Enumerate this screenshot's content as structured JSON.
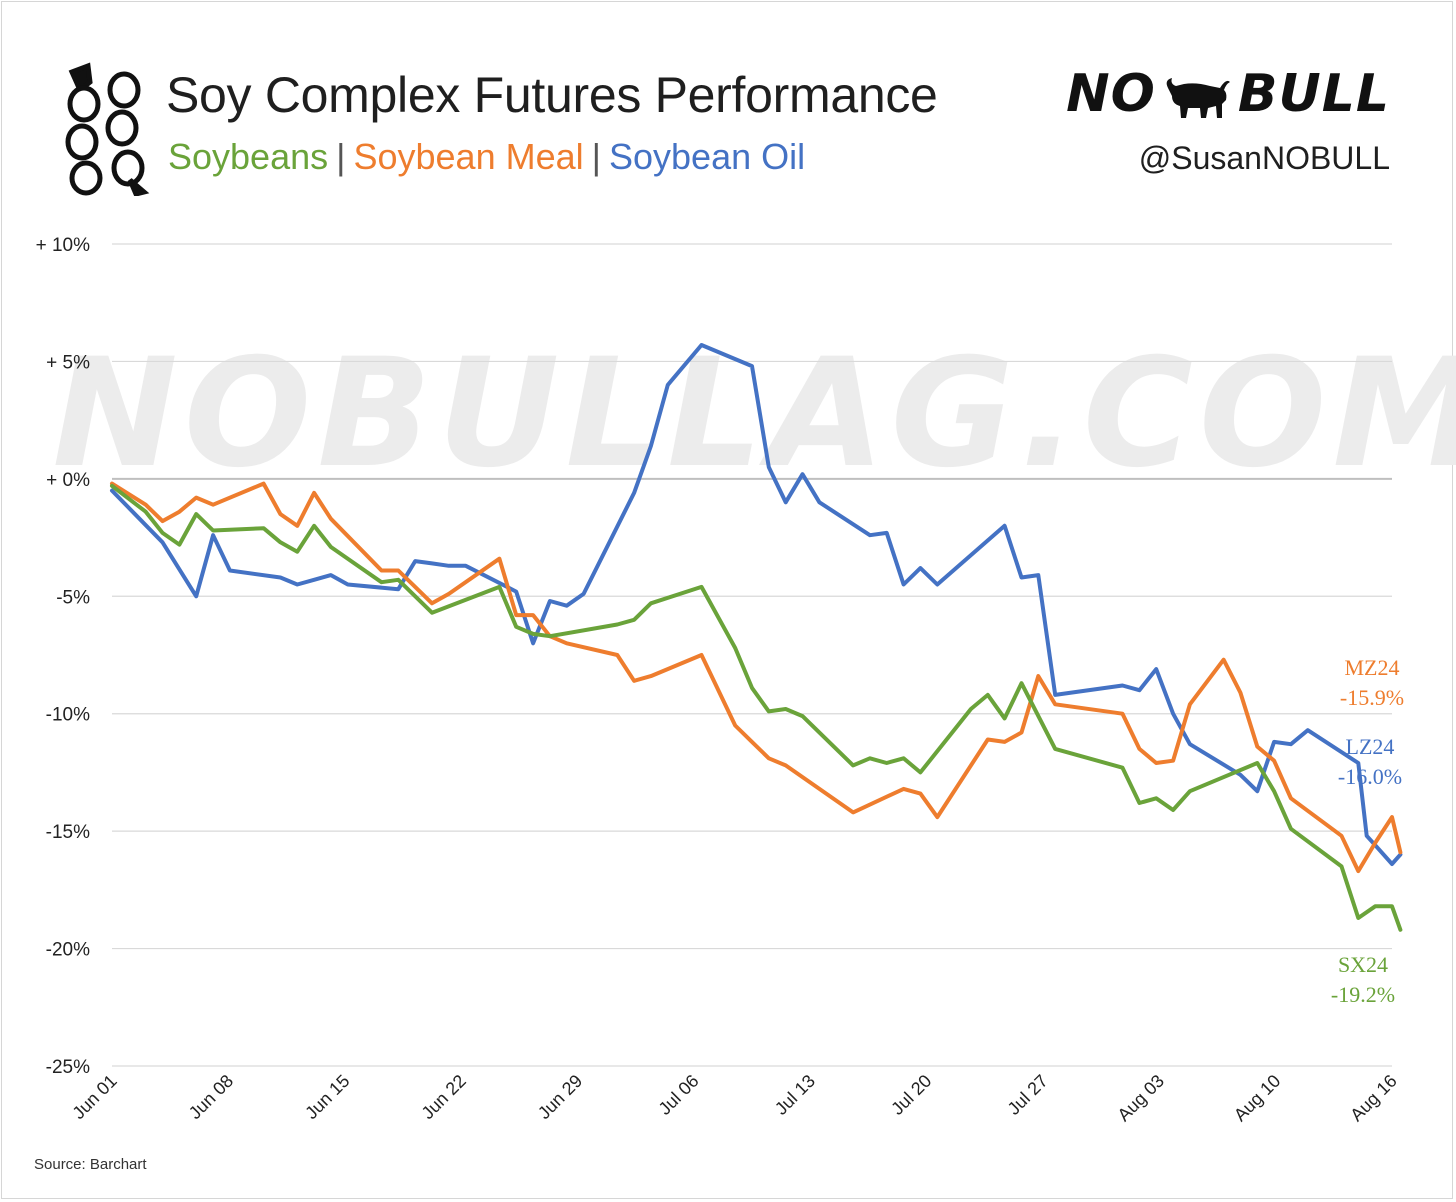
{
  "header": {
    "title": "Soy Complex Futures Performance",
    "subtitle_parts": [
      "Soybeans",
      "Soybean Meal",
      "Soybean Oil"
    ],
    "separator": "|",
    "brand_left": "NO",
    "brand_right": "BULL",
    "handle": "@SusanNOBULL",
    "watermark": "NOBULLAG.COM",
    "icons": {
      "logo": "soybean-pod-icon",
      "bull": "bull-icon"
    }
  },
  "source": "Source: Barchart",
  "colors": {
    "soybeans": "#6aa33a",
    "meal": "#ee7d2e",
    "oil": "#4472c4",
    "grid": "#d9d9d9",
    "zero": "#bfbfbf"
  },
  "chart_data": {
    "type": "line",
    "title": "Soy Complex Futures Performance",
    "ylim": [
      -25,
      10
    ],
    "yticks": [
      10,
      5,
      0,
      -5,
      -10,
      -15,
      -20,
      -25
    ],
    "ytick_labels": [
      "+ 10%",
      "+ 5%",
      "+ 0%",
      "-5%",
      "-10%",
      "-15%",
      "-20%",
      "-25%"
    ],
    "xlim": [
      "2024-06-01",
      "2024-08-16"
    ],
    "xtick_labels": [
      "Jun 01",
      "Jun 08",
      "Jun 15",
      "Jun 22",
      "Jun 29",
      "Jul 06",
      "Jul 13",
      "Jul 20",
      "Jul 27",
      "Aug 03",
      "Aug 10",
      "Aug 16"
    ],
    "grid": true,
    "series": [
      {
        "name": "Soybean Oil",
        "key": "oil",
        "label_code": "LZ24",
        "label_value": "-16.0%",
        "points": [
          [
            "2024-06-01",
            -0.5
          ],
          [
            "2024-06-04",
            -2.7
          ],
          [
            "2024-06-06",
            -5.0
          ],
          [
            "2024-06-07",
            -2.4
          ],
          [
            "2024-06-08",
            -3.9
          ],
          [
            "2024-06-11",
            -4.2
          ],
          [
            "2024-06-12",
            -4.5
          ],
          [
            "2024-06-13",
            -4.3
          ],
          [
            "2024-06-14",
            -4.1
          ],
          [
            "2024-06-15",
            -4.5
          ],
          [
            "2024-06-18",
            -4.7
          ],
          [
            "2024-06-19",
            -3.5
          ],
          [
            "2024-06-20",
            -3.6
          ],
          [
            "2024-06-21",
            -3.7
          ],
          [
            "2024-06-22",
            -3.7
          ],
          [
            "2024-06-25",
            -4.8
          ],
          [
            "2024-06-26",
            -7.0
          ],
          [
            "2024-06-27",
            -5.2
          ],
          [
            "2024-06-28",
            -5.4
          ],
          [
            "2024-06-29",
            -4.9
          ],
          [
            "2024-07-02",
            -0.6
          ],
          [
            "2024-07-03",
            1.4
          ],
          [
            "2024-07-04",
            4.0
          ],
          [
            "2024-07-06",
            5.7
          ],
          [
            "2024-07-09",
            4.8
          ],
          [
            "2024-07-10",
            0.5
          ],
          [
            "2024-07-11",
            -1.0
          ],
          [
            "2024-07-12",
            0.2
          ],
          [
            "2024-07-13",
            -1.0
          ],
          [
            "2024-07-16",
            -2.4
          ],
          [
            "2024-07-17",
            -2.3
          ],
          [
            "2024-07-18",
            -4.5
          ],
          [
            "2024-07-19",
            -3.8
          ],
          [
            "2024-07-20",
            -4.5
          ],
          [
            "2024-07-24",
            -2.0
          ],
          [
            "2024-07-25",
            -4.2
          ],
          [
            "2024-07-26",
            -4.1
          ],
          [
            "2024-07-27",
            -9.2
          ],
          [
            "2024-07-31",
            -8.8
          ],
          [
            "2024-08-01",
            -9.0
          ],
          [
            "2024-08-02",
            -8.1
          ],
          [
            "2024-08-03",
            -10.0
          ],
          [
            "2024-08-04",
            -11.3
          ],
          [
            "2024-08-07",
            -12.6
          ],
          [
            "2024-08-08",
            -13.3
          ],
          [
            "2024-08-09",
            -11.2
          ],
          [
            "2024-08-10",
            -11.3
          ],
          [
            "2024-08-11",
            -10.7
          ],
          [
            "2024-08-14",
            -12.1
          ],
          [
            "2024-08-14T12:00",
            -15.2
          ],
          [
            "2024-08-15",
            -15.6
          ],
          [
            "2024-08-16",
            -16.4
          ],
          [
            "2024-08-16T12:00",
            -16.0
          ]
        ]
      },
      {
        "name": "Soybean Meal",
        "key": "meal",
        "label_code": "MZ24",
        "label_value": "-15.9%",
        "points": [
          [
            "2024-06-01",
            -0.2
          ],
          [
            "2024-06-03",
            -1.1
          ],
          [
            "2024-06-04",
            -1.8
          ],
          [
            "2024-06-05",
            -1.4
          ],
          [
            "2024-06-06",
            -0.8
          ],
          [
            "2024-06-07",
            -1.1
          ],
          [
            "2024-06-10",
            -0.2
          ],
          [
            "2024-06-11",
            -1.5
          ],
          [
            "2024-06-12",
            -2.0
          ],
          [
            "2024-06-13",
            -0.6
          ],
          [
            "2024-06-14",
            -1.7
          ],
          [
            "2024-06-17",
            -3.9
          ],
          [
            "2024-06-18",
            -3.9
          ],
          [
            "2024-06-19",
            -4.6
          ],
          [
            "2024-06-20",
            -5.3
          ],
          [
            "2024-06-21",
            -4.9
          ],
          [
            "2024-06-24",
            -3.4
          ],
          [
            "2024-06-25",
            -5.8
          ],
          [
            "2024-06-26",
            -5.8
          ],
          [
            "2024-06-27",
            -6.7
          ],
          [
            "2024-06-28",
            -7.0
          ],
          [
            "2024-07-01",
            -7.5
          ],
          [
            "2024-07-02",
            -8.6
          ],
          [
            "2024-07-03",
            -8.4
          ],
          [
            "2024-07-06",
            -7.5
          ],
          [
            "2024-07-08",
            -10.5
          ],
          [
            "2024-07-09",
            -11.2
          ],
          [
            "2024-07-10",
            -11.9
          ],
          [
            "2024-07-11",
            -12.2
          ],
          [
            "2024-07-15",
            -14.2
          ],
          [
            "2024-07-18",
            -13.2
          ],
          [
            "2024-07-19",
            -13.4
          ],
          [
            "2024-07-20",
            -14.4
          ],
          [
            "2024-07-23",
            -11.1
          ],
          [
            "2024-07-24",
            -11.2
          ],
          [
            "2024-07-25",
            -10.8
          ],
          [
            "2024-07-26",
            -8.4
          ],
          [
            "2024-07-27",
            -9.6
          ],
          [
            "2024-07-31",
            -10.0
          ],
          [
            "2024-08-01",
            -11.5
          ],
          [
            "2024-08-02",
            -12.1
          ],
          [
            "2024-08-03",
            -12.0
          ],
          [
            "2024-08-04",
            -9.6
          ],
          [
            "2024-08-06",
            -7.7
          ],
          [
            "2024-08-07",
            -9.1
          ],
          [
            "2024-08-08",
            -11.4
          ],
          [
            "2024-08-09",
            -12.0
          ],
          [
            "2024-08-10",
            -13.6
          ],
          [
            "2024-08-13",
            -15.2
          ],
          [
            "2024-08-14",
            -16.7
          ],
          [
            "2024-08-15",
            -15.5
          ],
          [
            "2024-08-16",
            -14.4
          ],
          [
            "2024-08-16T12:00",
            -15.9
          ]
        ]
      },
      {
        "name": "Soybeans",
        "key": "soybeans",
        "label_code": "SX24",
        "label_value": "-19.2%",
        "points": [
          [
            "2024-06-01",
            -0.3
          ],
          [
            "2024-06-03",
            -1.4
          ],
          [
            "2024-06-04",
            -2.3
          ],
          [
            "2024-06-05",
            -2.8
          ],
          [
            "2024-06-06",
            -1.5
          ],
          [
            "2024-06-07",
            -2.2
          ],
          [
            "2024-06-10",
            -2.1
          ],
          [
            "2024-06-11",
            -2.7
          ],
          [
            "2024-06-12",
            -3.1
          ],
          [
            "2024-06-13",
            -2.0
          ],
          [
            "2024-06-14",
            -2.9
          ],
          [
            "2024-06-17",
            -4.4
          ],
          [
            "2024-06-18",
            -4.3
          ],
          [
            "2024-06-20",
            -5.7
          ],
          [
            "2024-06-24",
            -4.6
          ],
          [
            "2024-06-25",
            -6.3
          ],
          [
            "2024-06-26",
            -6.6
          ],
          [
            "2024-06-27",
            -6.7
          ],
          [
            "2024-07-01",
            -6.2
          ],
          [
            "2024-07-02",
            -6.0
          ],
          [
            "2024-07-03",
            -5.3
          ],
          [
            "2024-07-06",
            -4.6
          ],
          [
            "2024-07-08",
            -7.2
          ],
          [
            "2024-07-09",
            -8.9
          ],
          [
            "2024-07-10",
            -9.9
          ],
          [
            "2024-07-11",
            -9.8
          ],
          [
            "2024-07-12",
            -10.1
          ],
          [
            "2024-07-15",
            -12.2
          ],
          [
            "2024-07-16",
            -11.9
          ],
          [
            "2024-07-17",
            -12.1
          ],
          [
            "2024-07-18",
            -11.9
          ],
          [
            "2024-07-19",
            -12.5
          ],
          [
            "2024-07-22",
            -9.8
          ],
          [
            "2024-07-23",
            -9.2
          ],
          [
            "2024-07-24",
            -10.2
          ],
          [
            "2024-07-25",
            -8.7
          ],
          [
            "2024-07-27",
            -11.5
          ],
          [
            "2024-07-31",
            -12.3
          ],
          [
            "2024-08-01",
            -13.8
          ],
          [
            "2024-08-02",
            -13.6
          ],
          [
            "2024-08-03",
            -14.1
          ],
          [
            "2024-08-04",
            -13.3
          ],
          [
            "2024-08-08",
            -12.1
          ],
          [
            "2024-08-09",
            -13.3
          ],
          [
            "2024-08-10",
            -14.9
          ],
          [
            "2024-08-13",
            -16.5
          ],
          [
            "2024-08-14",
            -18.7
          ],
          [
            "2024-08-15",
            -18.2
          ],
          [
            "2024-08-16",
            -18.2
          ],
          [
            "2024-08-16T12:00",
            -19.2
          ]
        ]
      }
    ]
  }
}
